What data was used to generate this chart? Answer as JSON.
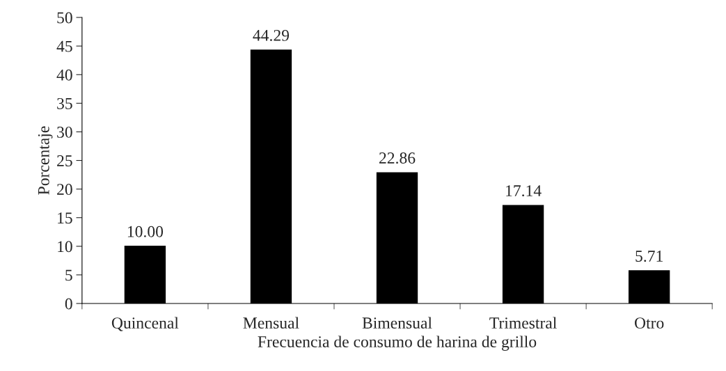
{
  "chart_data": {
    "type": "bar",
    "xlabel": "Frecuencia de consumo de harina de grillo",
    "ylabel": "Porcentaje",
    "categories": [
      "Quincenal",
      "Mensual",
      "Bimensual",
      "Trimestral",
      "Otro"
    ],
    "values": [
      10.0,
      44.29,
      22.86,
      17.14,
      5.71
    ],
    "value_labels": [
      "10.00",
      "44.29",
      "22.86",
      "17.14",
      "5.71"
    ],
    "color": "#000000",
    "ylim": [
      0,
      50
    ],
    "yticks": [
      0,
      5,
      10,
      15,
      20,
      25,
      30,
      35,
      40,
      45,
      50
    ],
    "grid": false,
    "legend": false
  }
}
